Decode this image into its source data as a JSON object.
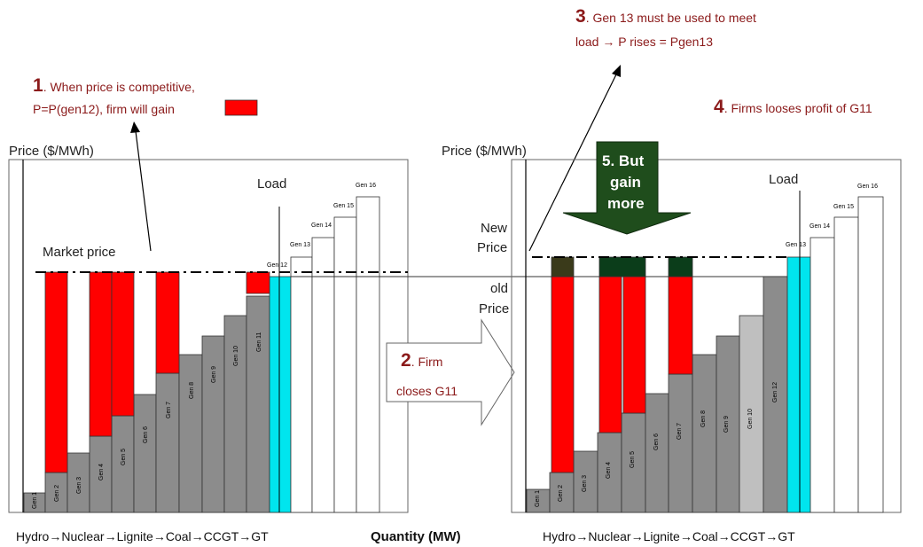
{
  "annotations": {
    "a1": {
      "num": "1",
      "line1": ". When price is competitive,",
      "line2": "P=P(gen12), firm will gain"
    },
    "a2": {
      "num": "2",
      "line1": ". Firm",
      "line2": "closes G11"
    },
    "a3": {
      "num": "3",
      "line1": ". Gen 13 must be used to meet",
      "line2": "load → P rises = Pgen13"
    },
    "a4": {
      "num": "4",
      "line1": ". Firms looses profit of G11"
    },
    "a5": {
      "num": "5",
      "line1": ". But",
      "line2": "gain",
      "line3": "more"
    }
  },
  "left": {
    "ylabel": "Price ($/MWh)",
    "load_label": "Load",
    "market_price_label": "Market price",
    "xlabel": "Hydro→Nuclear→Lignite→Coal→CCGT→GT",
    "generators": [
      "Gen 1",
      "Gen 2",
      "Gen 3",
      "Gen 4",
      "Gen 5",
      "Gen 6",
      "Gen 7",
      "Gen 8",
      "Gen 9",
      "Gen 10",
      "Gen 11",
      "Gen 12",
      "Gen 13",
      "Gen 14",
      "Gen 15",
      "Gen 16"
    ]
  },
  "right": {
    "ylabel": "Price ($/MWh)",
    "load_label": "Load",
    "new_price_label": [
      "New",
      "Price"
    ],
    "old_price_label": [
      "old",
      "Price"
    ],
    "xlabel": "Hydro→Nuclear→Lignite→Coal→CCGT→GT",
    "generators": [
      "Gen 1",
      "Gen 2",
      "Gen 3",
      "Gen 4",
      "Gen 5",
      "Gen 6",
      "Gen 7",
      "Gen 8",
      "Gen 9",
      "Gen 10",
      "Gen 12",
      "Gen 13",
      "Gen 14",
      "Gen 15",
      "Gen 16"
    ]
  },
  "quantity_label": "Quantity (MW)",
  "colors": {
    "gray": "#8c8c8c",
    "light_gray": "#bfbfbf",
    "red": "#ff0000",
    "cyan": "#00e5ee",
    "dark_green": "#0b3d1a",
    "dark_olive": "#3a3a1a",
    "annotation": "#8b1a1a"
  }
}
